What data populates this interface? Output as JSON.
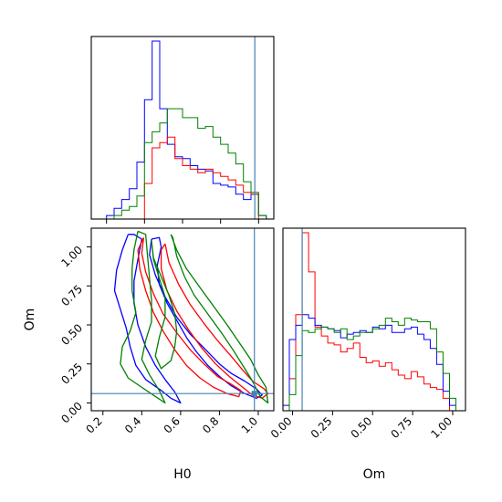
{
  "chart_data": {
    "type": "corner-plot",
    "parameters": [
      "H0",
      "Om"
    ],
    "truth": {
      "H0": 0.98,
      "Om": 0.06
    },
    "colors": {
      "blue": "#0000ff",
      "red": "#ff0000",
      "green": "#008000",
      "truth": "#4682b4"
    },
    "panels": {
      "h0_hist": {
        "type": "histogram",
        "xlim": [
          0.12,
          1.08
        ],
        "bin_edges": [
          0.12,
          0.16,
          0.2,
          0.24,
          0.28,
          0.32,
          0.36,
          0.4,
          0.44,
          0.48,
          0.52,
          0.56,
          0.6,
          0.64,
          0.68,
          0.72,
          0.76,
          0.8,
          0.84,
          0.88,
          0.92,
          0.96,
          1.0,
          1.04,
          1.08
        ],
        "series": [
          {
            "color": "blue",
            "values": [
              0.0,
              0.0,
              0.02,
              0.06,
              0.11,
              0.17,
              0.32,
              0.67,
              1.0,
              0.62,
              0.42,
              0.35,
              0.34,
              0.3,
              0.28,
              0.27,
              0.2,
              0.19,
              0.18,
              0.14,
              0.11,
              0.14,
              0.02,
              0.0
            ]
          },
          {
            "color": "red",
            "values": [
              0.0,
              0.0,
              0.0,
              0.0,
              0.0,
              0.0,
              0.0,
              0.2,
              0.4,
              0.43,
              0.46,
              0.34,
              0.3,
              0.28,
              0.26,
              0.28,
              0.26,
              0.24,
              0.22,
              0.19,
              0.15,
              0.14,
              0.0,
              0.0
            ]
          },
          {
            "color": "green",
            "values": [
              0.0,
              0.0,
              0.0,
              0.02,
              0.05,
              0.07,
              0.13,
              0.43,
              0.49,
              0.54,
              0.62,
              0.62,
              0.57,
              0.57,
              0.51,
              0.52,
              0.46,
              0.42,
              0.37,
              0.31,
              0.21,
              0.15,
              0.02,
              0.0
            ]
          }
        ]
      },
      "om_hist": {
        "type": "histogram",
        "xlim": [
          -0.06,
          1.08
        ],
        "bin_edges": [
          -0.06,
          -0.02,
          0.02,
          0.06,
          0.1,
          0.14,
          0.18,
          0.22,
          0.26,
          0.3,
          0.34,
          0.38,
          0.42,
          0.46,
          0.5,
          0.54,
          0.58,
          0.62,
          0.66,
          0.7,
          0.74,
          0.78,
          0.82,
          0.86,
          0.9,
          0.94,
          0.98,
          1.02,
          1.06
        ],
        "series": [
          {
            "color": "red",
            "values": [
              0.0,
              0.18,
              0.54,
              1.0,
              0.78,
              0.47,
              0.42,
              0.38,
              0.37,
              0.33,
              0.35,
              0.38,
              0.3,
              0.27,
              0.28,
              0.25,
              0.27,
              0.23,
              0.2,
              0.18,
              0.22,
              0.19,
              0.15,
              0.13,
              0.12,
              0.07,
              0.0,
              0.0
            ]
          },
          {
            "color": "blue",
            "values": [
              0.03,
              0.4,
              0.48,
              0.54,
              0.52,
              0.48,
              0.47,
              0.46,
              0.45,
              0.41,
              0.43,
              0.44,
              0.45,
              0.44,
              0.47,
              0.46,
              0.48,
              0.44,
              0.44,
              0.46,
              0.47,
              0.43,
              0.4,
              0.35,
              0.26,
              0.11,
              0.03,
              0.0
            ]
          },
          {
            "color": "green",
            "values": [
              0.0,
              0.09,
              0.31,
              0.45,
              0.44,
              0.46,
              0.47,
              0.46,
              0.44,
              0.46,
              0.4,
              0.42,
              0.44,
              0.44,
              0.46,
              0.48,
              0.52,
              0.5,
              0.48,
              0.52,
              0.51,
              0.5,
              0.5,
              0.46,
              0.33,
              0.21,
              0.07,
              0.0
            ]
          }
        ]
      },
      "joint": {
        "type": "contour",
        "xlim": [
          0.14,
          1.08
        ],
        "ylim": [
          -0.05,
          1.12
        ],
        "contours": [
          {
            "color": "blue",
            "points": [
              [
                0.33,
                1.08
              ],
              [
                0.3,
                0.98
              ],
              [
                0.27,
                0.85
              ],
              [
                0.26,
                0.72
              ],
              [
                0.29,
                0.6
              ],
              [
                0.32,
                0.48
              ],
              [
                0.34,
                0.36
              ],
              [
                0.37,
                0.24
              ],
              [
                0.42,
                0.15
              ],
              [
                0.5,
                0.08
              ],
              [
                0.55,
                0.03
              ],
              [
                0.6,
                0.0
              ],
              [
                0.57,
                0.07
              ],
              [
                0.52,
                0.15
              ],
              [
                0.47,
                0.24
              ],
              [
                0.42,
                0.36
              ],
              [
                0.38,
                0.5
              ],
              [
                0.36,
                0.64
              ],
              [
                0.36,
                0.78
              ],
              [
                0.38,
                0.92
              ],
              [
                0.4,
                1.05
              ],
              [
                0.36,
                1.08
              ],
              [
                0.33,
                1.08
              ]
            ]
          },
          {
            "color": "blue",
            "points": [
              [
                0.45,
                1.05
              ],
              [
                0.44,
                0.95
              ],
              [
                0.47,
                0.82
              ],
              [
                0.52,
                0.68
              ],
              [
                0.58,
                0.55
              ],
              [
                0.65,
                0.44
              ],
              [
                0.73,
                0.34
              ],
              [
                0.8,
                0.25
              ],
              [
                0.86,
                0.19
              ],
              [
                0.93,
                0.14
              ],
              [
                0.99,
                0.09
              ],
              [
                1.02,
                0.05
              ],
              [
                0.99,
                0.03
              ],
              [
                0.93,
                0.06
              ],
              [
                0.86,
                0.11
              ],
              [
                0.8,
                0.17
              ],
              [
                0.74,
                0.24
              ],
              [
                0.68,
                0.33
              ],
              [
                0.63,
                0.42
              ],
              [
                0.58,
                0.53
              ],
              [
                0.53,
                0.64
              ],
              [
                0.49,
                0.76
              ],
              [
                0.48,
                0.88
              ],
              [
                0.5,
                1.0
              ],
              [
                0.49,
                1.06
              ],
              [
                0.45,
                1.05
              ]
            ]
          },
          {
            "color": "red",
            "points": [
              [
                0.41,
                1.06
              ],
              [
                0.4,
                0.96
              ],
              [
                0.42,
                0.84
              ],
              [
                0.46,
                0.7
              ],
              [
                0.51,
                0.57
              ],
              [
                0.58,
                0.45
              ],
              [
                0.65,
                0.34
              ],
              [
                0.72,
                0.25
              ],
              [
                0.79,
                0.17
              ],
              [
                0.86,
                0.12
              ],
              [
                0.91,
                0.08
              ],
              [
                0.9,
                0.04
              ],
              [
                0.84,
                0.06
              ],
              [
                0.77,
                0.1
              ],
              [
                0.7,
                0.16
              ],
              [
                0.63,
                0.24
              ],
              [
                0.57,
                0.34
              ],
              [
                0.51,
                0.46
              ],
              [
                0.46,
                0.58
              ],
              [
                0.42,
                0.72
              ],
              [
                0.39,
                0.86
              ],
              [
                0.38,
                0.98
              ],
              [
                0.41,
                1.06
              ]
            ]
          },
          {
            "color": "red",
            "points": [
              [
                0.52,
                1.02
              ],
              [
                0.54,
                0.9
              ],
              [
                0.59,
                0.76
              ],
              [
                0.65,
                0.63
              ],
              [
                0.72,
                0.51
              ],
              [
                0.79,
                0.4
              ],
              [
                0.86,
                0.3
              ],
              [
                0.92,
                0.21
              ],
              [
                0.97,
                0.14
              ],
              [
                1.03,
                0.09
              ],
              [
                1.05,
                0.06
              ],
              [
                1.02,
                0.03
              ],
              [
                0.97,
                0.05
              ],
              [
                0.91,
                0.11
              ],
              [
                0.85,
                0.17
              ],
              [
                0.78,
                0.25
              ],
              [
                0.71,
                0.35
              ],
              [
                0.64,
                0.47
              ],
              [
                0.58,
                0.59
              ],
              [
                0.53,
                0.72
              ],
              [
                0.5,
                0.86
              ],
              [
                0.5,
                0.98
              ],
              [
                0.52,
                1.02
              ]
            ]
          },
          {
            "color": "green",
            "points": [
              [
                0.38,
                1.1
              ],
              [
                0.36,
                0.98
              ],
              [
                0.35,
                0.86
              ],
              [
                0.35,
                0.72
              ],
              [
                0.37,
                0.58
              ],
              [
                0.34,
                0.46
              ],
              [
                0.3,
                0.36
              ],
              [
                0.29,
                0.25
              ],
              [
                0.33,
                0.16
              ],
              [
                0.4,
                0.1
              ],
              [
                0.46,
                0.05
              ],
              [
                0.52,
                0.0
              ],
              [
                0.49,
                0.08
              ],
              [
                0.44,
                0.18
              ],
              [
                0.4,
                0.28
              ],
              [
                0.42,
                0.4
              ],
              [
                0.45,
                0.52
              ],
              [
                0.45,
                0.66
              ],
              [
                0.44,
                0.8
              ],
              [
                0.43,
                0.94
              ],
              [
                0.42,
                1.08
              ],
              [
                0.38,
                1.1
              ]
            ]
          },
          {
            "color": "green",
            "points": [
              [
                0.55,
                1.08
              ],
              [
                0.58,
                0.98
              ],
              [
                0.63,
                0.86
              ],
              [
                0.7,
                0.74
              ],
              [
                0.77,
                0.62
              ],
              [
                0.84,
                0.5
              ],
              [
                0.9,
                0.39
              ],
              [
                0.96,
                0.28
              ],
              [
                1.0,
                0.18
              ],
              [
                1.04,
                0.1
              ],
              [
                1.05,
                0.0
              ],
              [
                1.01,
                0.04
              ],
              [
                0.97,
                0.14
              ],
              [
                0.92,
                0.24
              ],
              [
                0.87,
                0.34
              ],
              [
                0.81,
                0.45
              ],
              [
                0.74,
                0.57
              ],
              [
                0.67,
                0.69
              ],
              [
                0.62,
                0.81
              ],
              [
                0.58,
                0.94
              ],
              [
                0.56,
                1.06
              ],
              [
                0.55,
                1.08
              ]
            ]
          },
          {
            "color": "green",
            "points": [
              [
                0.45,
                1.04
              ],
              [
                0.46,
                0.93
              ],
              [
                0.5,
                0.81
              ],
              [
                0.54,
                0.69
              ],
              [
                0.57,
                0.57
              ],
              [
                0.58,
                0.46
              ],
              [
                0.57,
                0.36
              ],
              [
                0.55,
                0.27
              ],
              [
                0.5,
                0.22
              ],
              [
                0.47,
                0.3
              ],
              [
                0.49,
                0.42
              ],
              [
                0.52,
                0.55
              ],
              [
                0.52,
                0.68
              ],
              [
                0.49,
                0.8
              ],
              [
                0.46,
                0.92
              ],
              [
                0.45,
                1.04
              ]
            ]
          }
        ],
        "truth_point": [
          0.98,
          0.06
        ]
      }
    },
    "x_ticks": {
      "h0": [
        "0.2",
        "0.4",
        "0.6",
        "0.8",
        "1.0"
      ],
      "om": [
        "0.00",
        "0.25",
        "0.50",
        "0.75",
        "1.00"
      ]
    },
    "y_ticks": {
      "om": [
        "0.00",
        "0.25",
        "0.50",
        "0.75",
        "1.00"
      ]
    },
    "labels": {
      "x_left": "H0",
      "x_right": "Om",
      "y_left": "Om"
    }
  }
}
